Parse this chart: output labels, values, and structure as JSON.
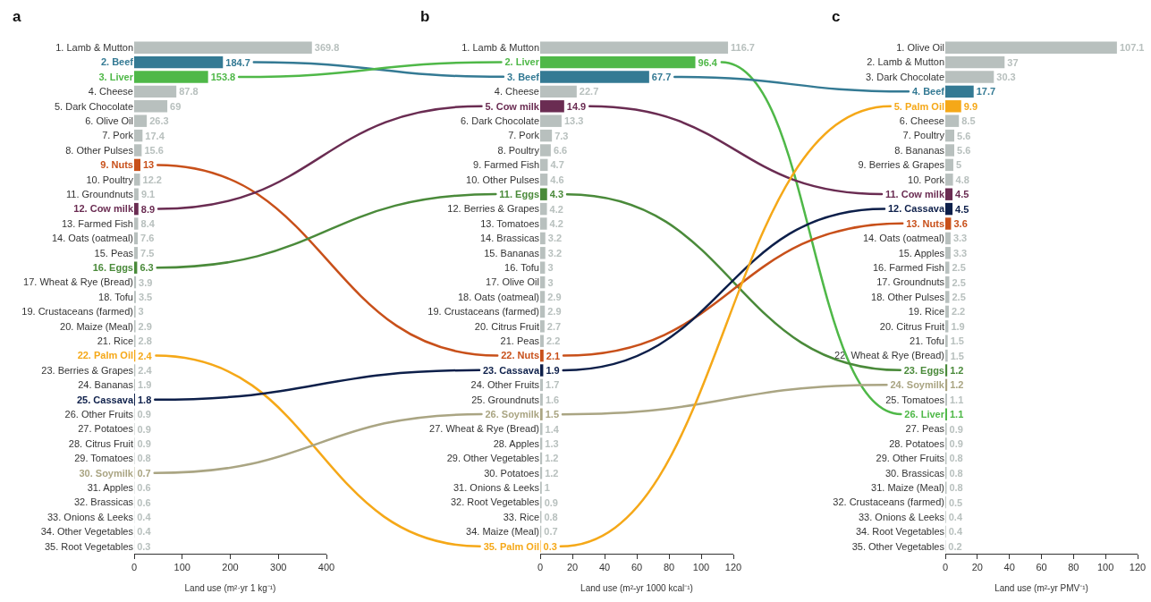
{
  "chart_data": [
    {
      "type": "bar",
      "orientation": "horizontal",
      "title": "a",
      "xlabel": "Land use (m²·yr 1 kg⁻¹)",
      "xlim": [
        0,
        400
      ],
      "xticks": [
        0,
        100,
        200,
        300,
        400
      ],
      "data_labels": true,
      "categories": [
        "1. Lamb & Mutton",
        "2. Beef",
        "3. Liver",
        "4. Cheese",
        "5. Dark Chocolate",
        "6. Olive Oil",
        "7. Pork",
        "8. Other Pulses",
        "9. Nuts",
        "10. Poultry",
        "11. Groundnuts",
        "12. Cow milk",
        "13. Farmed Fish",
        "14. Oats (oatmeal)",
        "15. Peas",
        "16. Eggs",
        "17. Wheat & Rye (Bread)",
        "18. Tofu",
        "19. Crustaceans (farmed)",
        "20. Maize (Meal)",
        "21. Rice",
        "22. Palm Oil",
        "23. Berries & Grapes",
        "24. Bananas",
        "25. Cassava",
        "26. Other Fruits",
        "27. Potatoes",
        "28. Citrus Fruit",
        "29. Tomatoes",
        "30. Soymilk",
        "31. Apples",
        "32. Brassicas",
        "33. Onions & Leeks",
        "34. Other Vegetables",
        "35. Root Vegetables"
      ],
      "values": [
        369.8,
        184.7,
        153.8,
        87.8,
        69,
        26.3,
        17.4,
        15.6,
        13,
        12.2,
        9.1,
        8.9,
        8.4,
        7.6,
        7.5,
        6.3,
        3.9,
        3.5,
        3,
        2.9,
        2.8,
        2.4,
        2.4,
        1.9,
        1.8,
        0.9,
        0.9,
        0.9,
        0.8,
        0.7,
        0.6,
        0.6,
        0.4,
        0.4,
        0.3
      ],
      "colors": [
        "#b8c0be",
        "#347a94",
        "#4fb848",
        "#b8c0be",
        "#b8c0be",
        "#b8c0be",
        "#b8c0be",
        "#b8c0be",
        "#c8501a",
        "#b8c0be",
        "#b8c0be",
        "#6a2c52",
        "#b8c0be",
        "#b8c0be",
        "#b8c0be",
        "#4a8a3a",
        "#b8c0be",
        "#b8c0be",
        "#b8c0be",
        "#b8c0be",
        "#b8c0be",
        "#f5a818",
        "#b8c0be",
        "#b8c0be",
        "#0d1f4a",
        "#b8c0be",
        "#b8c0be",
        "#b8c0be",
        "#b8c0be",
        "#aaa583",
        "#b8c0be",
        "#b8c0be",
        "#b8c0be",
        "#b8c0be",
        "#b8c0be"
      ]
    },
    {
      "type": "bar",
      "orientation": "horizontal",
      "title": "b",
      "xlabel": "Land use (m²-yr 1000 kcal⁻¹)",
      "xlim": [
        0,
        120
      ],
      "xticks": [
        0,
        20,
        40,
        60,
        80,
        100,
        120
      ],
      "data_labels": true,
      "categories": [
        "1. Lamb & Mutton",
        "2. Liver",
        "3. Beef",
        "4. Cheese",
        "5. Cow milk",
        "6. Dark Chocolate",
        "7. Pork",
        "8. Poultry",
        "9. Farmed Fish",
        "10. Other Pulses",
        "11. Eggs",
        "12. Berries & Grapes",
        "13. Tomatoes",
        "14. Brassicas",
        "15. Bananas",
        "16. Tofu",
        "17. Olive Oil",
        "18. Oats (oatmeal)",
        "19. Crustaceans (farmed)",
        "20. Citrus Fruit",
        "21. Peas",
        "22. Nuts",
        "23. Cassava",
        "24. Other Fruits",
        "25. Groundnuts",
        "26. Soymilk",
        "27. Wheat & Rye (Bread)",
        "28. Apples",
        "29. Other Vegetables",
        "30. Potatoes",
        "31. Onions & Leeks",
        "32. Root Vegetables",
        "33. Rice",
        "34. Maize (Meal)",
        "35. Palm Oil"
      ],
      "values": [
        116.7,
        96.4,
        67.7,
        22.7,
        14.9,
        13.3,
        7.3,
        6.6,
        4.7,
        4.6,
        4.3,
        4.2,
        4.2,
        3.2,
        3.2,
        3,
        3,
        2.9,
        2.9,
        2.7,
        2.2,
        2.1,
        1.9,
        1.7,
        1.6,
        1.5,
        1.4,
        1.3,
        1.2,
        1.2,
        1,
        0.9,
        0.8,
        0.7,
        0.3
      ],
      "colors": [
        "#b8c0be",
        "#4fb848",
        "#347a94",
        "#b8c0be",
        "#6a2c52",
        "#b8c0be",
        "#b8c0be",
        "#b8c0be",
        "#b8c0be",
        "#b8c0be",
        "#4a8a3a",
        "#b8c0be",
        "#b8c0be",
        "#b8c0be",
        "#b8c0be",
        "#b8c0be",
        "#b8c0be",
        "#b8c0be",
        "#b8c0be",
        "#b8c0be",
        "#b8c0be",
        "#c8501a",
        "#0d1f4a",
        "#b8c0be",
        "#b8c0be",
        "#aaa583",
        "#b8c0be",
        "#b8c0be",
        "#b8c0be",
        "#b8c0be",
        "#b8c0be",
        "#b8c0be",
        "#b8c0be",
        "#b8c0be",
        "#f5a818"
      ]
    },
    {
      "type": "bar",
      "orientation": "horizontal",
      "title": "c",
      "xlabel": "Land use (m²-yr PMV⁻¹)",
      "xlim": [
        0,
        120
      ],
      "xticks": [
        0,
        20,
        40,
        60,
        80,
        100,
        120
      ],
      "data_labels": true,
      "categories": [
        "1. Olive Oil",
        "2. Lamb & Mutton",
        "3. Dark Chocolate",
        "4. Beef",
        "5. Palm Oil",
        "6. Cheese",
        "7. Poultry",
        "8. Bananas",
        "9. Berries & Grapes",
        "10. Pork",
        "11. Cow milk",
        "12. Cassava",
        "13. Nuts",
        "14. Oats (oatmeal)",
        "15. Apples",
        "16. Farmed Fish",
        "17. Groundnuts",
        "18. Other Pulses",
        "19. Rice",
        "20. Citrus Fruit",
        "21. Tofu",
        "22. Wheat & Rye (Bread)",
        "23. Eggs",
        "24. Soymilk",
        "25. Tomatoes",
        "26. Liver",
        "27. Peas",
        "28. Potatoes",
        "29. Other Fruits",
        "30. Brassicas",
        "31. Maize (Meal)",
        "32. Crustaceans (farmed)",
        "33. Onions & Leeks",
        "34. Root Vegetables",
        "35. Other Vegetables"
      ],
      "values": [
        107.1,
        37,
        30.3,
        17.7,
        9.9,
        8.5,
        5.6,
        5.6,
        5,
        4.8,
        4.5,
        4.5,
        3.6,
        3.3,
        3.3,
        2.5,
        2.5,
        2.5,
        2.2,
        1.9,
        1.5,
        1.5,
        1.2,
        1.2,
        1.1,
        1.1,
        0.9,
        0.9,
        0.8,
        0.8,
        0.8,
        0.5,
        0.4,
        0.4,
        0.2
      ],
      "colors": [
        "#b8c0be",
        "#b8c0be",
        "#b8c0be",
        "#347a94",
        "#f5a818",
        "#b8c0be",
        "#b8c0be",
        "#b8c0be",
        "#b8c0be",
        "#b8c0be",
        "#6a2c52",
        "#0d1f4a",
        "#c8501a",
        "#b8c0be",
        "#b8c0be",
        "#b8c0be",
        "#b8c0be",
        "#b8c0be",
        "#b8c0be",
        "#b8c0be",
        "#b8c0be",
        "#b8c0be",
        "#4a8a3a",
        "#aaa583",
        "#b8c0be",
        "#4fb848",
        "#b8c0be",
        "#b8c0be",
        "#b8c0be",
        "#b8c0be",
        "#b8c0be",
        "#b8c0be",
        "#b8c0be",
        "#b8c0be",
        "#b8c0be"
      ]
    }
  ]
}
